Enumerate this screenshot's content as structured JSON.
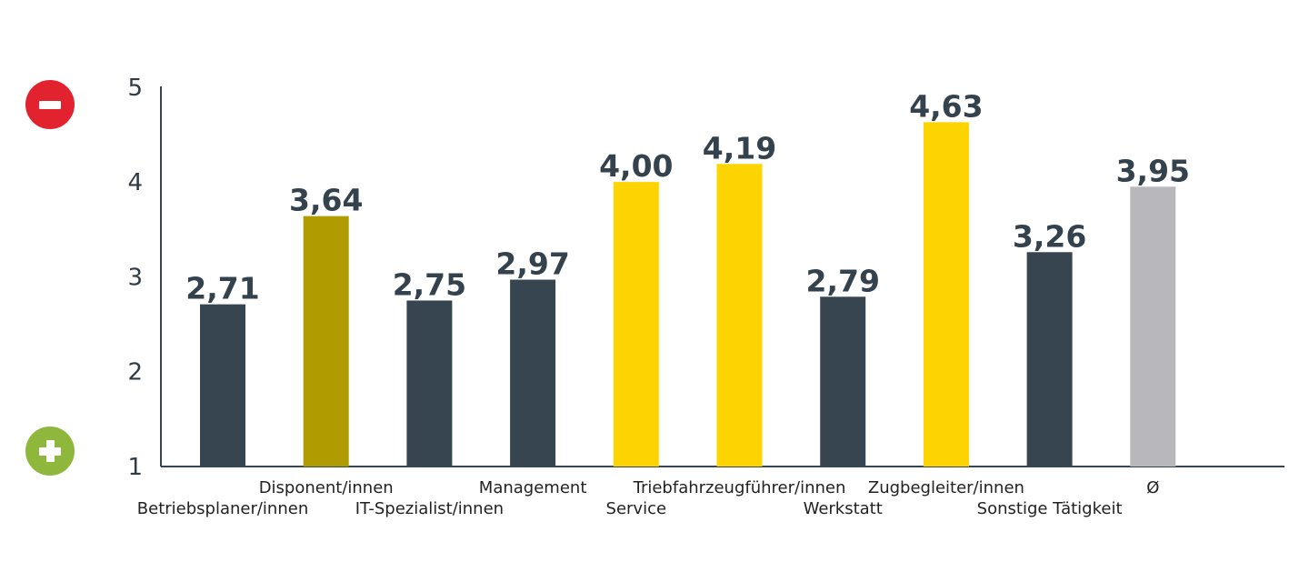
{
  "icons": {
    "top": "minus-icon",
    "bottom": "plus-icon",
    "top_color": "#e2222e",
    "bottom_color": "#8fb73c"
  },
  "chart_data": {
    "type": "bar",
    "categories": [
      "Betriebsplaner/innen",
      "Disponent/innen",
      "IT-Spezialist/innen",
      "Management",
      "Service",
      "Triebfahrzeugführer/innen",
      "Werkstatt",
      "Zugbegleiter/innen",
      "Sonstige Tätigkeit",
      "Ø"
    ],
    "values": [
      2.71,
      3.64,
      2.75,
      2.97,
      4.0,
      4.19,
      2.79,
      4.63,
      3.26,
      3.95
    ],
    "value_labels": [
      "2,71",
      "3,64",
      "2,75",
      "2,97",
      "4,00",
      "4,19",
      "2,79",
      "4,63",
      "3,26",
      "3,95"
    ],
    "colors": [
      "#36454f",
      "#b09b00",
      "#36454f",
      "#36454f",
      "#fdd300",
      "#fdd300",
      "#36454f",
      "#fdd300",
      "#36454f",
      "#b8b8bc"
    ],
    "ylim": [
      1,
      5
    ],
    "yticks": [
      "1",
      "2",
      "3",
      "4",
      "5"
    ],
    "title": "",
    "xlabel": "",
    "ylabel": "",
    "grid": false
  }
}
